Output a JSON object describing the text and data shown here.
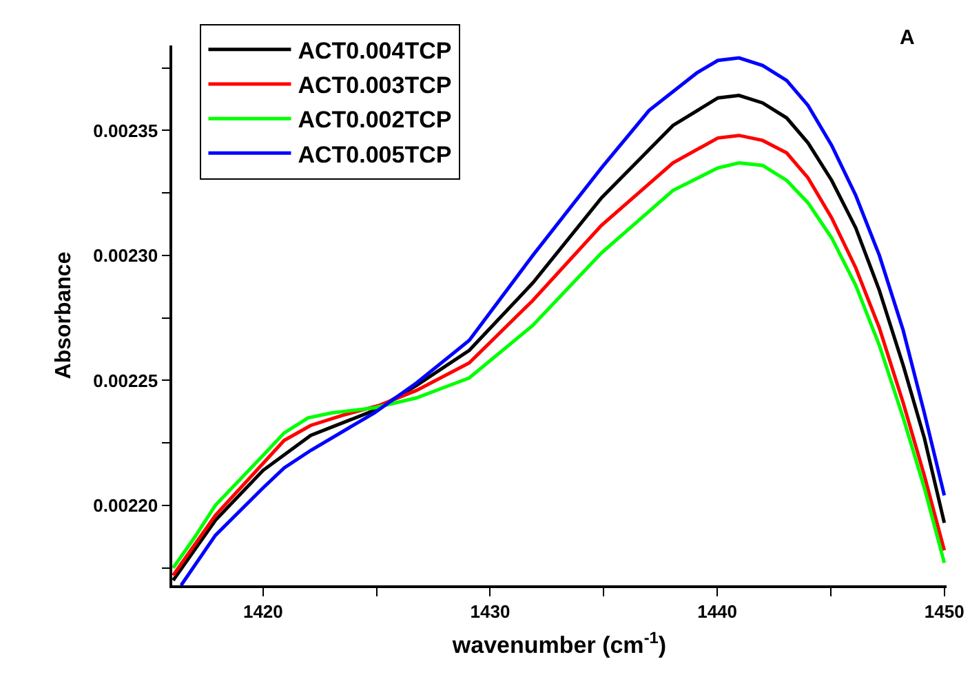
{
  "chart_data": {
    "type": "line",
    "xlabel": "wavenumber (cm$^{-1}$)",
    "ylabel": "Absorbance",
    "annotations": [
      "A"
    ],
    "xlim": [
      1416,
      1450.1
    ],
    "ylim": [
      0.002168,
      0.002384
    ],
    "xticks": [
      1420,
      {
        "value": 1425,
        "label": null
      },
      1430,
      {
        "value": 1435,
        "label": null
      },
      1440,
      {
        "value": 1445,
        "label": null
      },
      1450
    ],
    "yticks": [
      {
        "value": 0.002175,
        "label": null
      },
      {
        "value": 0.0022,
        "label": "0.00220"
      },
      {
        "value": 0.002225,
        "label": null
      },
      {
        "value": 0.00225,
        "label": "0.00225"
      },
      {
        "value": 0.002275,
        "label": null
      },
      {
        "value": 0.0023,
        "label": "0.00230"
      },
      {
        "value": 0.002325,
        "label": null
      },
      {
        "value": 0.00235,
        "label": "0.00235"
      },
      {
        "value": 0.002375,
        "label": null
      }
    ],
    "grid": false,
    "legend": "top left",
    "marker": "none",
    "line_style": "solid",
    "series": [
      {
        "name": "ACT0.004TCP",
        "color": "#000000",
        "x": [
          1416.04,
          1417.9,
          1420,
          1422.1,
          1424.9,
          1426.76,
          1429.08,
          1431.88,
          1434.9,
          1438.05,
          1440.03,
          1440.96,
          1442.0,
          1443.06,
          1444.0,
          1445.04,
          1446.1,
          1447.14,
          1448.19,
          1449.12,
          1450.0
        ],
        "values": [
          0.00217,
          0.002194,
          0.002214,
          0.002228,
          0.002238,
          0.002248,
          0.002262,
          0.002289,
          0.002323,
          0.002352,
          0.002363,
          0.002364,
          0.002361,
          0.002355,
          0.002345,
          0.00233,
          0.002311,
          0.002286,
          0.002256,
          0.002227,
          0.002193
        ]
      },
      {
        "name": "ACT0.003TCP",
        "color": "#ff0000",
        "x": [
          1416.04,
          1417.9,
          1420.93,
          1422.1,
          1423.5,
          1425.12,
          1426.76,
          1429.08,
          1431.88,
          1434.9,
          1438.05,
          1440.03,
          1440.96,
          1442.0,
          1443.06,
          1444.0,
          1445.04,
          1446.1,
          1447.14,
          1448.19,
          1449.12,
          1450.0
        ],
        "values": [
          0.002172,
          0.002196,
          0.002226,
          0.002232,
          0.002236,
          0.00224,
          0.002246,
          0.002257,
          0.002282,
          0.002312,
          0.002337,
          0.002347,
          0.002348,
          0.002346,
          0.002341,
          0.002331,
          0.002315,
          0.002295,
          0.002271,
          0.002241,
          0.002212,
          0.002182
        ]
      },
      {
        "name": "ACT0.002TCP",
        "color": "#00ff00",
        "x": [
          1416.04,
          1416.97,
          1417.9,
          1420,
          1420.93,
          1421.98,
          1423.03,
          1424.9,
          1426.76,
          1427.92,
          1429.08,
          1431.88,
          1434.9,
          1438.05,
          1440.03,
          1440.96,
          1442.0,
          1443.06,
          1444.0,
          1445.04,
          1446.1,
          1447.14,
          1448.19,
          1449.12,
          1450.0
        ],
        "values": [
          0.002175,
          0.002187,
          0.0022,
          0.00222,
          0.002229,
          0.002235,
          0.002237,
          0.002239,
          0.002243,
          0.002247,
          0.002251,
          0.002272,
          0.002301,
          0.002326,
          0.002335,
          0.002337,
          0.002336,
          0.00233,
          0.002321,
          0.002307,
          0.002288,
          0.002264,
          0.002235,
          0.002207,
          0.002177
        ]
      },
      {
        "name": "ACT0.005TCP",
        "color": "#0000ff",
        "x": [
          1416.39,
          1417.9,
          1420,
          1420.93,
          1422.1,
          1424.9,
          1426.76,
          1429.08,
          1431.88,
          1434.9,
          1437.0,
          1439.1,
          1440.03,
          1440.96,
          1442.0,
          1443.06,
          1444.0,
          1445.04,
          1446.1,
          1447.14,
          1448.19,
          1449.12,
          1450.0
        ],
        "values": [
          0.002168,
          0.002188,
          0.002207,
          0.002215,
          0.002222,
          0.002237,
          0.002249,
          0.002266,
          0.0023,
          0.002335,
          0.002358,
          0.002373,
          0.002378,
          0.002379,
          0.002376,
          0.00237,
          0.00236,
          0.002344,
          0.002324,
          0.0023,
          0.00227,
          0.002237,
          0.002204
        ]
      }
    ]
  }
}
